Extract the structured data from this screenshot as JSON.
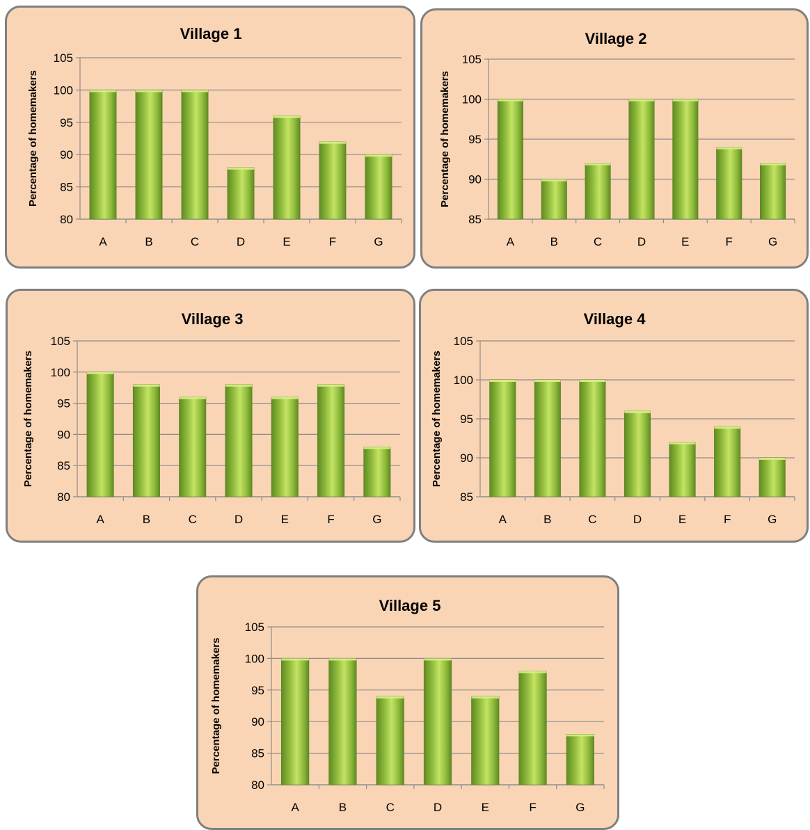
{
  "chart_data": [
    {
      "type": "bar",
      "title": "Village 1",
      "ylabel": "Percentage of homemakers",
      "categories": [
        "A",
        "B",
        "C",
        "D",
        "E",
        "F",
        "G"
      ],
      "values": [
        100,
        100,
        100,
        88,
        96,
        92,
        90
      ],
      "ylim": [
        80,
        105
      ],
      "yticks": [
        80,
        85,
        90,
        95,
        100,
        105
      ],
      "grid": true
    },
    {
      "type": "bar",
      "title": "Village 2",
      "ylabel": "Percentage of homemakers",
      "categories": [
        "A",
        "B",
        "C",
        "D",
        "E",
        "F",
        "G"
      ],
      "values": [
        100,
        90,
        92,
        100,
        100,
        94,
        92
      ],
      "ylim": [
        85,
        105
      ],
      "yticks": [
        85,
        90,
        95,
        100,
        105
      ],
      "grid": true
    },
    {
      "type": "bar",
      "title": "Village 3",
      "ylabel": "Percentage of homemakers",
      "categories": [
        "A",
        "B",
        "C",
        "D",
        "E",
        "F",
        "G"
      ],
      "values": [
        100,
        98,
        96,
        98,
        96,
        98,
        88
      ],
      "ylim": [
        80,
        105
      ],
      "yticks": [
        80,
        85,
        90,
        95,
        100,
        105
      ],
      "grid": true
    },
    {
      "type": "bar",
      "title": "Village 4",
      "ylabel": "Percentage of homemakers",
      "categories": [
        "A",
        "B",
        "C",
        "D",
        "E",
        "F",
        "G"
      ],
      "values": [
        100,
        100,
        100,
        96,
        92,
        94,
        90
      ],
      "ylim": [
        85,
        105
      ],
      "yticks": [
        85,
        90,
        95,
        100,
        105
      ],
      "grid": true
    },
    {
      "type": "bar",
      "title": "Village 5",
      "ylabel": "Percentage of homemakers",
      "categories": [
        "A",
        "B",
        "C",
        "D",
        "E",
        "F",
        "G"
      ],
      "values": [
        100,
        100,
        94,
        100,
        94,
        98,
        88
      ],
      "ylim": [
        80,
        105
      ],
      "yticks": [
        80,
        85,
        90,
        95,
        100,
        105
      ],
      "grid": true
    }
  ],
  "colors": {
    "panel_background": "#fad5b5",
    "panel_border": "#7f7f7f",
    "bar_light": "#c4e364",
    "bar_dark": "#5f8a22",
    "gridline": "#8c8c8c"
  }
}
